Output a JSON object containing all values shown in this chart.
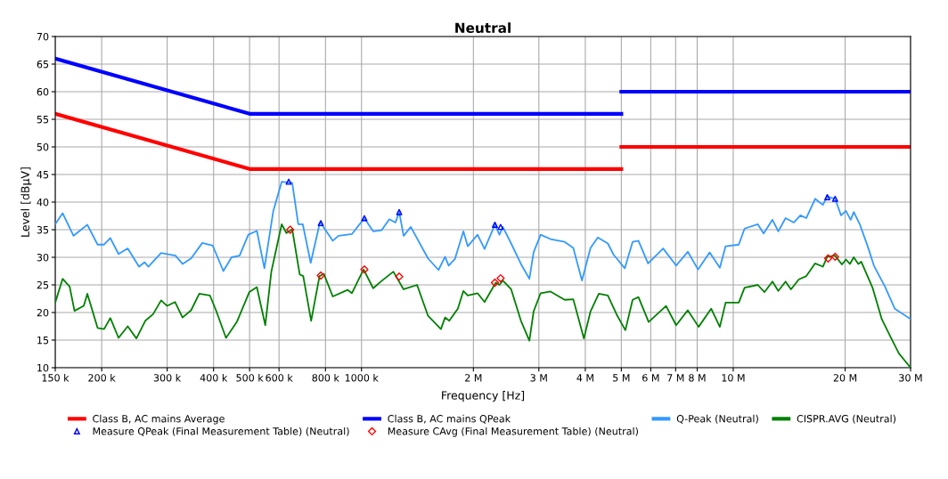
{
  "chart_data": {
    "type": "line",
    "title": "Neutral",
    "xlabel": "Frequency [Hz]",
    "ylabel": "Level [dBµV]",
    "log": "x",
    "grid": true,
    "legend": "bottom",
    "marker": "none",
    "line_style": "solid",
    "xlim": [
      150000,
      30000000
    ],
    "ylim": [
      10,
      70
    ],
    "xticks": [
      {
        "value": 150000,
        "label": "150 k"
      },
      {
        "value": 200000,
        "label": "200 k"
      },
      {
        "value": 300000,
        "label": "300 k"
      },
      {
        "value": 400000,
        "label": "400 k"
      },
      {
        "value": 500000,
        "label": "500 k"
      },
      {
        "value": 600000,
        "label": "600 k"
      },
      {
        "value": 800000,
        "label": "800 k"
      },
      {
        "value": 1000000,
        "label": "1000 k"
      },
      {
        "value": 2000000,
        "label": "2 M"
      },
      {
        "value": 3000000,
        "label": "3 M"
      },
      {
        "value": 4000000,
        "label": "4 M"
      },
      {
        "value": 5000000,
        "label": "5 M"
      },
      {
        "value": 6000000,
        "label": "6 M"
      },
      {
        "value": 7000000,
        "label": "7 M"
      },
      {
        "value": 8000000,
        "label": "8 M"
      },
      {
        "value": 10000000,
        "label": "10 M"
      },
      {
        "value": 20000000,
        "label": "20 M"
      },
      {
        "value": 30000000,
        "label": "30 M"
      }
    ],
    "yticks": [
      10,
      15,
      20,
      25,
      30,
      35,
      40,
      45,
      50,
      55,
      60,
      65,
      70
    ],
    "series": [
      {
        "name": "Class B, AC mains Average",
        "color": "#ff0000",
        "x": [
          150000,
          500000,
          5000000,
          null,
          5000000,
          30000000
        ],
        "values": [
          56,
          46,
          46,
          null,
          50,
          50
        ]
      },
      {
        "name": "Class B, AC mains QPeak",
        "color": "#0000ff",
        "x": [
          150000,
          500000,
          5000000,
          null,
          5000000,
          30000000
        ],
        "values": [
          66,
          56,
          56,
          null,
          60,
          60
        ]
      },
      {
        "name": "Q-Peak (Neutral)",
        "color": "#3399ff",
        "x": [
          150000,
          157000,
          168000,
          183000,
          195000,
          203000,
          211000,
          222000,
          235000,
          252000,
          261000,
          267000,
          289000,
          316000,
          330000,
          348000,
          373000,
          398000,
          425000,
          447000,
          470000,
          496000,
          523000,
          548000,
          579000,
          610000,
          651000,
          676000,
          695000,
          730000,
          771000,
          777000,
          837000,
          867000,
          942000,
          1018000,
          1075000,
          1132000,
          1188000,
          1234000,
          1263000,
          1298000,
          1357000,
          1510000,
          1611000,
          1678000,
          1716000,
          1784000,
          1880000,
          1931000,
          2052000,
          2143000,
          2285000,
          2350000,
          2400000,
          2527000,
          2685000,
          2829000,
          2904000,
          3033000,
          3225000,
          3521000,
          3713000,
          3918000,
          4131000,
          4322000,
          4600000,
          4772000,
          4860000,
          5107000,
          5362000,
          5559000,
          5900000,
          6478000,
          7022000,
          7546000,
          8041000,
          8641000,
          9205000,
          9540000,
          10350000,
          10730000,
          11640000,
          12070000,
          12750000,
          13220000,
          13830000,
          14560000,
          15160000,
          15730000,
          16610000,
          17420000,
          17910000,
          18800000,
          19500000,
          20100000,
          20700000,
          21100000,
          21900000,
          23000000,
          23900000,
          25600000,
          27200000,
          30000000
        ],
        "values": [
          36.0,
          38.0,
          33.9,
          35.9,
          32.3,
          32.3,
          33.5,
          30.6,
          31.6,
          28.3,
          29.1,
          28.3,
          30.8,
          30.3,
          28.8,
          29.8,
          32.6,
          32.1,
          27.5,
          30.0,
          30.3,
          34.1,
          34.8,
          28.0,
          38.4,
          43.7,
          43.5,
          36.0,
          36.0,
          29.0,
          36.0,
          36.2,
          33.0,
          33.9,
          34.2,
          37.1,
          34.7,
          34.9,
          36.9,
          36.3,
          38.2,
          33.9,
          35.5,
          29.8,
          27.7,
          30.1,
          28.5,
          29.7,
          34.7,
          32.0,
          34.1,
          31.5,
          35.9,
          34.1,
          35.5,
          32.5,
          28.8,
          26.1,
          30.9,
          34.1,
          33.3,
          32.8,
          31.7,
          25.8,
          31.7,
          33.6,
          32.5,
          30.4,
          29.8,
          28.0,
          32.8,
          33.0,
          28.9,
          31.6,
          28.5,
          31.0,
          27.8,
          30.9,
          28.1,
          32.0,
          32.3,
          35.2,
          36.0,
          34.3,
          36.8,
          34.7,
          37.1,
          36.3,
          37.6,
          37.1,
          40.6,
          39.5,
          41.0,
          40.6,
          37.6,
          38.4,
          36.8,
          38.2,
          36.0,
          32.0,
          28.5,
          24.7,
          20.7,
          18.8
        ]
      },
      {
        "name": "CISPR.AVG (Neutral)",
        "color": "#008000",
        "x": [
          150000,
          157000,
          164000,
          169000,
          179000,
          183000,
          195000,
          203000,
          211000,
          222000,
          235000,
          248000,
          262000,
          275000,
          289000,
          300000,
          315000,
          330000,
          348000,
          366000,
          391000,
          406000,
          432000,
          462000,
          499000,
          523000,
          551000,
          572000,
          610000,
          628000,
          651000,
          682000,
          697000,
          732000,
          771000,
          792000,
          837000,
          917000,
          942000,
          1013000,
          1075000,
          1132000,
          1218000,
          1298000,
          1411000,
          1510000,
          1635000,
          1678000,
          1722000,
          1816000,
          1880000,
          1931000,
          2052000,
          2143000,
          2297000,
          2350000,
          2400000,
          2527000,
          2685000,
          2829000,
          2904000,
          3033000,
          3225000,
          3521000,
          3713000,
          3966000,
          4131000,
          4349000,
          4600000,
          4860000,
          5127000,
          5362000,
          5559000,
          5922000,
          6596000,
          7022000,
          7546000,
          8071000,
          8722000,
          9205000,
          9540000,
          10350000,
          10730000,
          11640000,
          12140000,
          12750000,
          13220000,
          13830000,
          14300000,
          15020000,
          15730000,
          16610000,
          17420000,
          17910000,
          18800000,
          19600000,
          20100000,
          20600000,
          21100000,
          21700000,
          22100000,
          23700000,
          25100000,
          26500000,
          27900000,
          30000000
        ],
        "values": [
          21.8,
          26.1,
          24.7,
          20.3,
          21.2,
          23.4,
          17.2,
          17.0,
          19.0,
          15.4,
          17.5,
          15.3,
          18.5,
          19.7,
          22.2,
          21.2,
          21.9,
          19.1,
          20.4,
          23.4,
          23.1,
          20.4,
          15.4,
          18.3,
          23.7,
          24.6,
          17.7,
          27.4,
          36.0,
          34.4,
          35.1,
          26.9,
          26.6,
          18.5,
          26.6,
          27.0,
          22.9,
          24.1,
          23.5,
          27.8,
          24.4,
          25.7,
          27.4,
          24.2,
          25.0,
          19.4,
          17.0,
          19.1,
          18.5,
          20.7,
          23.9,
          23.1,
          23.5,
          21.9,
          25.4,
          25.0,
          25.8,
          24.2,
          18.5,
          14.9,
          20.2,
          23.5,
          23.8,
          22.3,
          22.4,
          15.3,
          20.2,
          23.4,
          23.1,
          19.6,
          16.8,
          22.3,
          22.8,
          18.3,
          21.2,
          17.7,
          20.4,
          17.4,
          20.7,
          17.4,
          21.8,
          21.8,
          24.5,
          25.0,
          23.7,
          25.6,
          23.9,
          25.6,
          24.2,
          26.0,
          26.6,
          28.9,
          28.3,
          30.1,
          30.3,
          28.7,
          29.6,
          28.8,
          30.0,
          28.8,
          29.2,
          24.5,
          18.8,
          15.6,
          12.6,
          10.0
        ]
      },
      {
        "name": "Measure QPeak (Final Measurement Table) (Neutral)",
        "color": "#0000ff",
        "type": "scatter",
        "marker": "triangle",
        "x": [
          637000,
          777000,
          1018000,
          1263000,
          2285000,
          2367000,
          17910000,
          18800000
        ],
        "values": [
          43.7,
          36.2,
          37.1,
          38.2,
          35.9,
          35.5,
          40.9,
          40.6
        ]
      },
      {
        "name": "Measure CAvg (Final Measurement Table) (Neutral)",
        "color": "#ff0000",
        "type": "scatter",
        "marker": "diamond",
        "x": [
          643000,
          777000,
          1018000,
          1263000,
          2285000,
          2367000,
          18000000,
          18800000
        ],
        "values": [
          35.0,
          26.7,
          27.8,
          26.5,
          25.4,
          26.2,
          29.8,
          30.1
        ]
      }
    ]
  }
}
